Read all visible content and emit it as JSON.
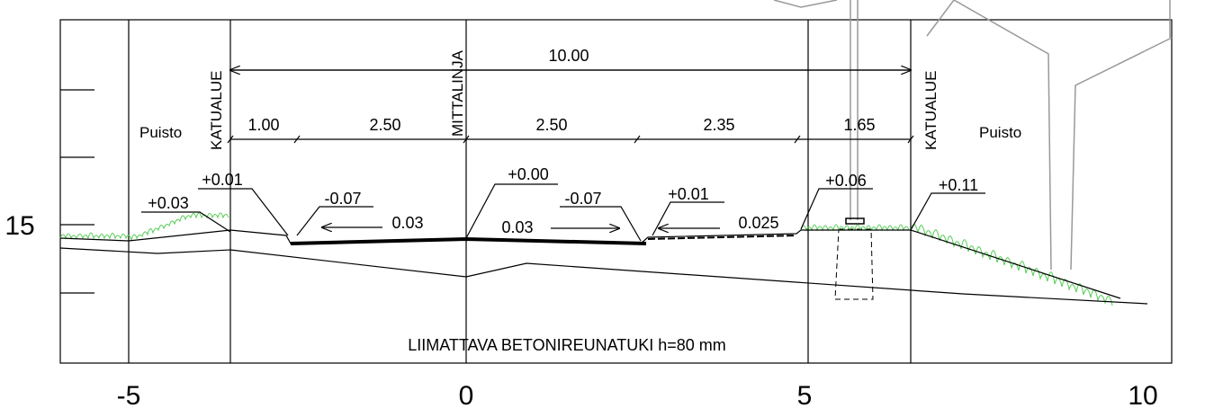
{
  "axis": {
    "x_labels": [
      "-5",
      "0",
      "5",
      "10"
    ],
    "y_label": "15"
  },
  "vertical_labels": [
    "KATUALUE",
    "MITTALINJA",
    "KATUALUE"
  ],
  "areas": [
    "Puisto",
    "Puisto"
  ],
  "total_width": "10.00",
  "widths": [
    "1.00",
    "2.50",
    "2.50",
    "2.35",
    "1.65"
  ],
  "elevations": [
    "+0.03",
    "+0.01",
    "-0.07",
    "+0.00",
    "-0.07",
    "+0.01",
    "+0.06",
    "+0.11"
  ],
  "slopes": [
    "0.03",
    "0.03",
    "0.025"
  ],
  "note": "LIIMATTAVA BETONIREUNATUKI h=80 mm"
}
